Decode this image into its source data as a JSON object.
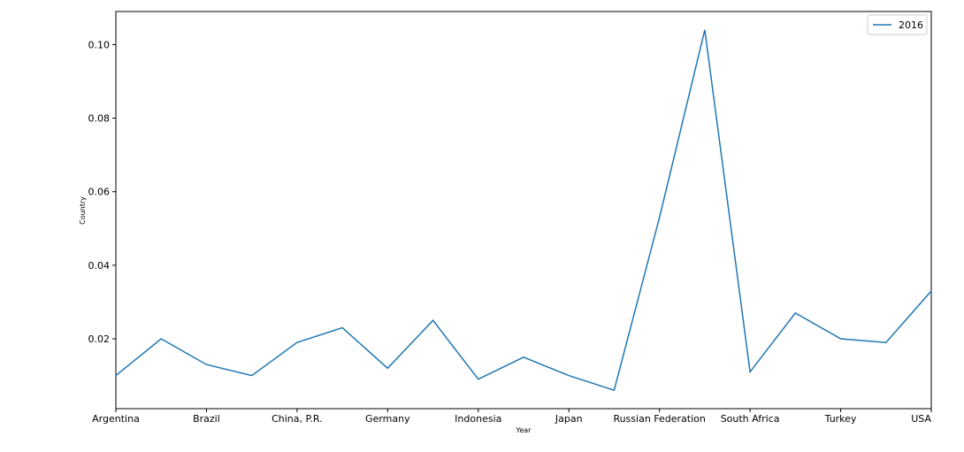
{
  "chart_data": {
    "type": "line",
    "categories": [
      "Argentina",
      "",
      "Brazil",
      "",
      "China, P.R.",
      "",
      "Germany",
      "",
      "Indonesia",
      "",
      "Japan",
      "",
      "Russian Federation",
      "",
      "South Africa",
      "",
      "Turkey",
      "",
      "USA"
    ],
    "x_tick_labels": [
      "Argentina",
      "Brazil",
      "China, P.R.",
      "Germany",
      "Indonesia",
      "Japan",
      "Russian Federation",
      "South Africa",
      "Turkey",
      "USA"
    ],
    "series": [
      {
        "name": "2016",
        "color": "#1f77b4",
        "values": [
          0.01,
          0.02,
          0.013,
          0.01,
          0.019,
          0.023,
          0.012,
          0.025,
          0.009,
          0.015,
          0.01,
          0.006,
          0.053,
          0.104,
          0.011,
          0.027,
          0.02,
          0.019,
          0.033
        ]
      }
    ],
    "xlabel": "Year",
    "ylabel": "Country",
    "ylim": [
      0.001,
      0.109
    ],
    "y_ticks": [
      0.02,
      0.04,
      0.06,
      0.08,
      0.1
    ],
    "y_tick_labels": [
      "0.02",
      "0.04",
      "0.06",
      "0.08",
      "0.10"
    ],
    "legend_position": "top-right",
    "grid": false
  }
}
